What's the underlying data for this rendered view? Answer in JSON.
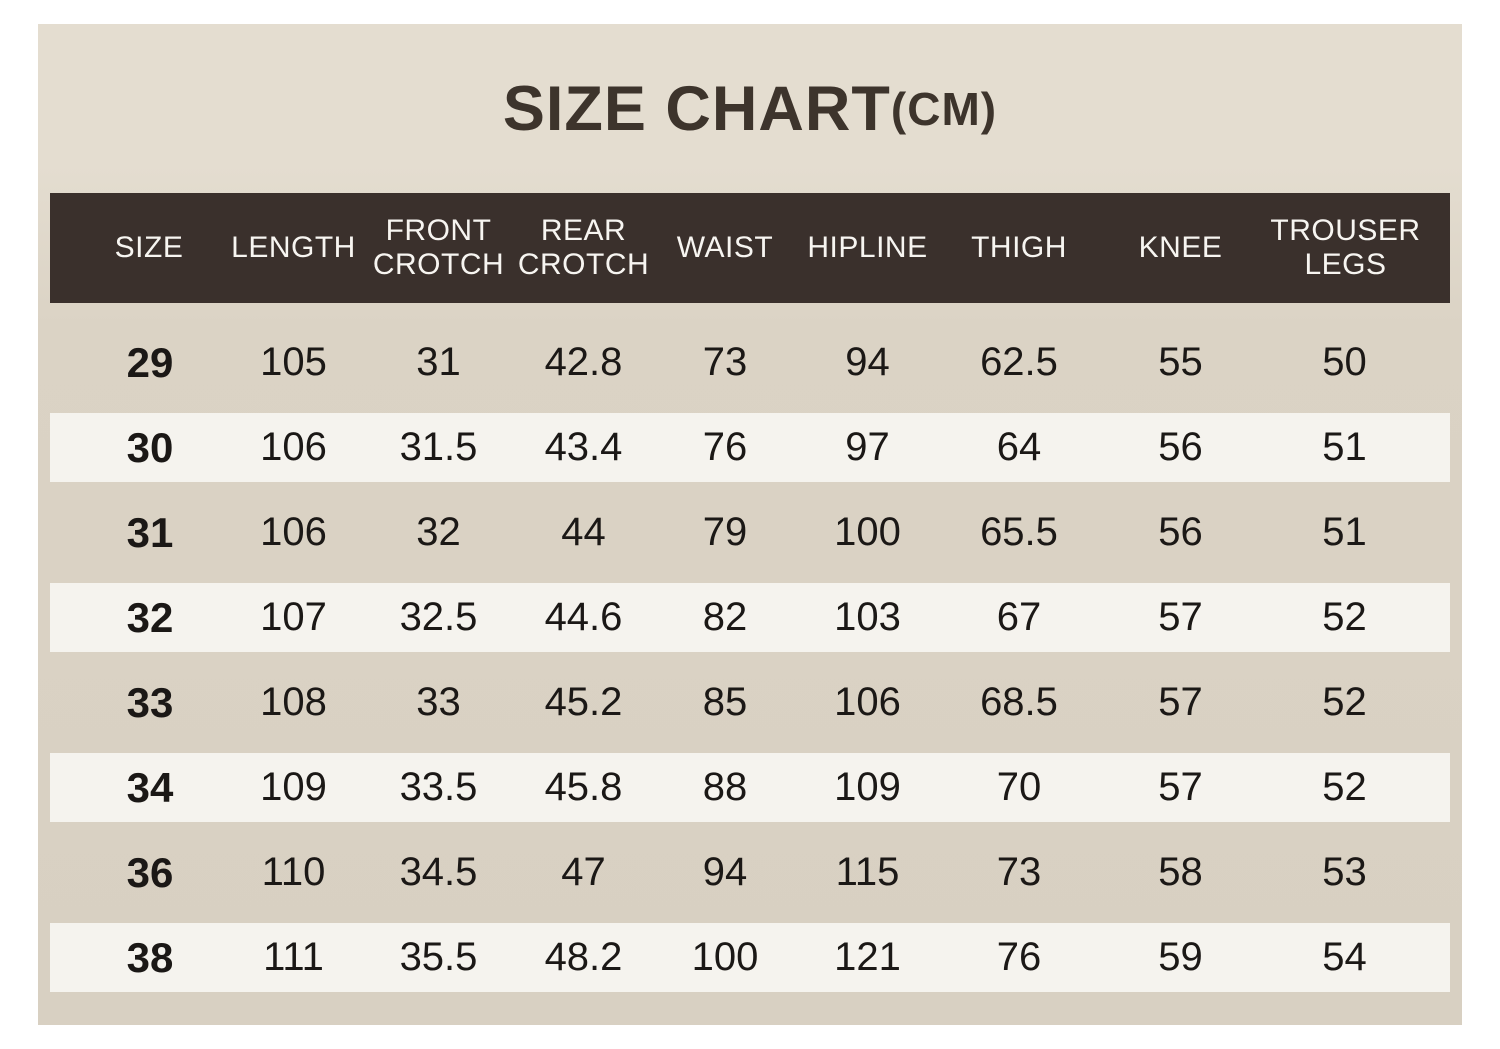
{
  "chart_data": {
    "type": "table",
    "title": "SIZE CHART",
    "title_unit": "(CM)",
    "unit": "cm",
    "columns": [
      "SIZE",
      "LENGTH",
      "FRONT CROTCH",
      "REAR CROTCH",
      "WAIST",
      "HIPLINE",
      "THIGH",
      "KNEE",
      "TROUSER LEGS"
    ],
    "rows": [
      [
        "29",
        "105",
        "31",
        "42.8",
        "73",
        "94",
        "62.5",
        "55",
        "50"
      ],
      [
        "30",
        "106",
        "31.5",
        "43.4",
        "76",
        "97",
        "64",
        "56",
        "51"
      ],
      [
        "31",
        "106",
        "32",
        "44",
        "79",
        "100",
        "65.5",
        "56",
        "51"
      ],
      [
        "32",
        "107",
        "32.5",
        "44.6",
        "82",
        "103",
        "67",
        "57",
        "52"
      ],
      [
        "33",
        "108",
        "33",
        "45.2",
        "85",
        "106",
        "68.5",
        "57",
        "52"
      ],
      [
        "34",
        "109",
        "33.5",
        "45.8",
        "88",
        "109",
        "70",
        "57",
        "52"
      ],
      [
        "36",
        "110",
        "34.5",
        "47",
        "94",
        "115",
        "73",
        "58",
        "53"
      ],
      [
        "38",
        "111",
        "35.5",
        "48.2",
        "100",
        "121",
        "76",
        "59",
        "54"
      ]
    ],
    "layout": {
      "stripe_pattern": "even rows (30, 32, 34, 38) on white stripes; odd rows on beige background",
      "header_style": "dark brown bar with white text"
    }
  },
  "colors": {
    "page_bg": "#ffffff",
    "panel_bg_top": "#e4ddd0",
    "panel_bg_bottom": "#dbd3c5",
    "panel_bg_bottom2": "#d8d0c2",
    "header_bg": "#3a302c",
    "header_text": "#f7f5f1",
    "stripe_bg": "#f5f3ee",
    "text": "#1b1816",
    "title_text": "#3d342c"
  }
}
